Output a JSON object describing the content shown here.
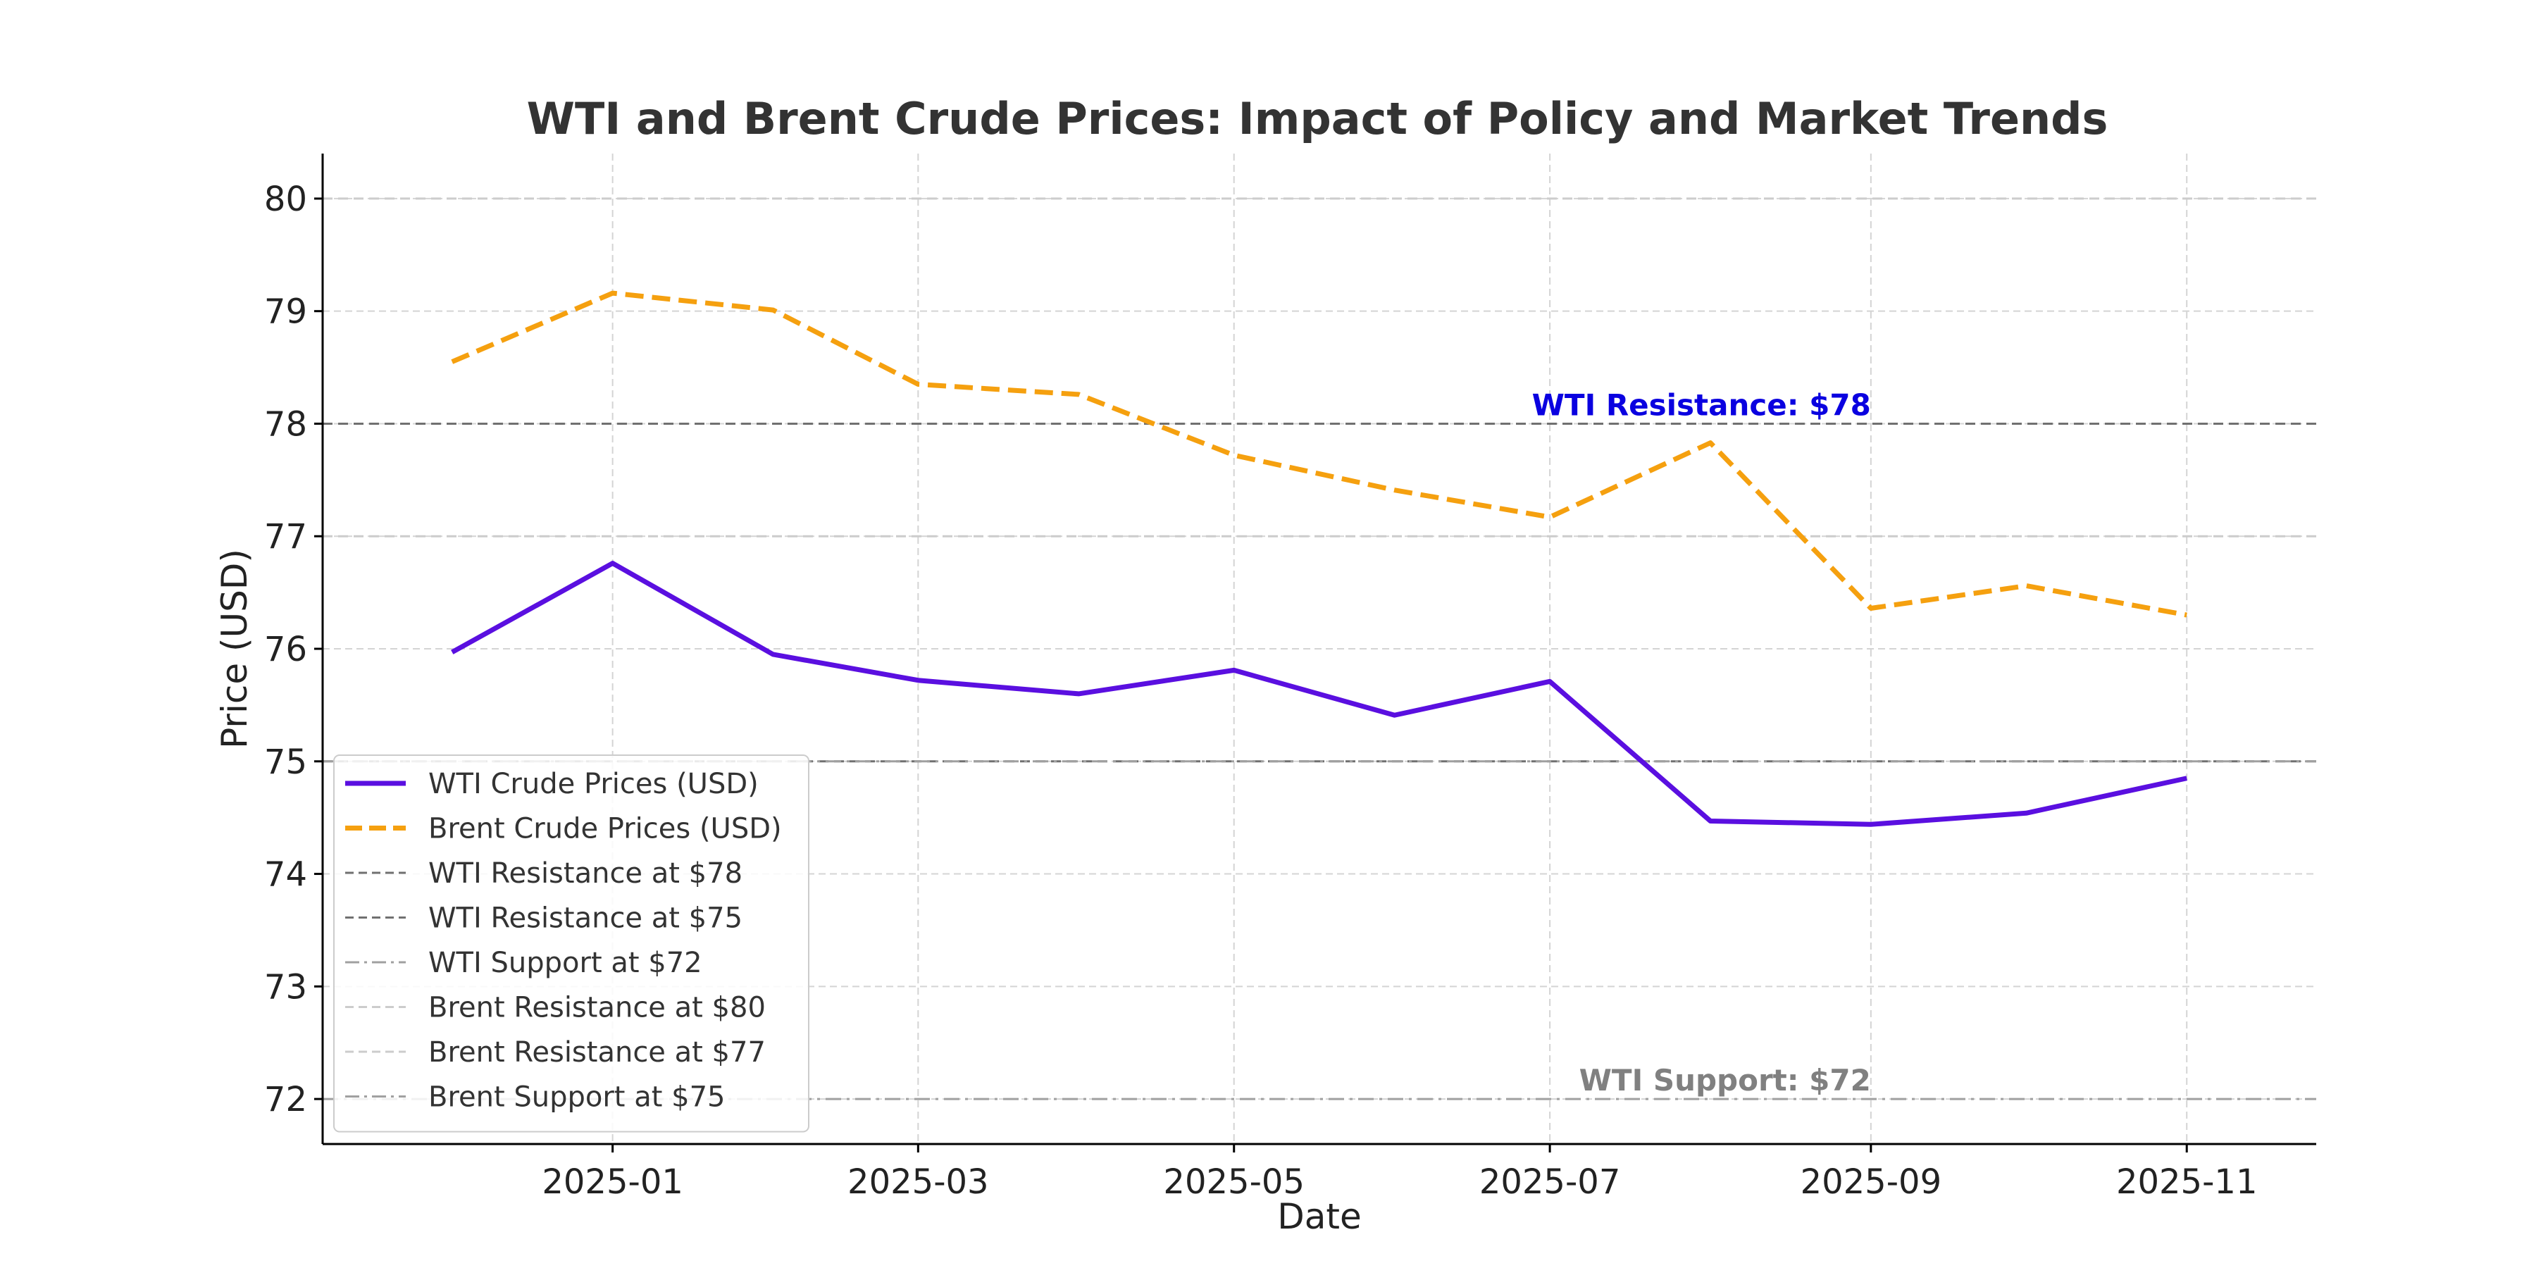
{
  "chart_data": {
    "type": "line",
    "title": "WTI and Brent Crude Prices: Impact of Policy and Market Trends",
    "xlabel": "Date",
    "ylabel": "Price (USD)",
    "x": [
      "2024-12",
      "2025-01",
      "2025-02",
      "2025-03",
      "2025-04",
      "2025-05",
      "2025-06",
      "2025-07",
      "2025-08",
      "2025-09",
      "2025-10",
      "2025-11"
    ],
    "xticks": [
      "2025-01",
      "2025-03",
      "2025-05",
      "2025-07",
      "2025-09",
      "2025-11"
    ],
    "yticks": [
      "72",
      "73",
      "74",
      "75",
      "76",
      "77",
      "78",
      "79",
      "80"
    ],
    "ylim": [
      71.6,
      80.4
    ],
    "xlim": [
      "2024-11-06",
      "2025-11-26"
    ],
    "grid": true,
    "legend_position": "lower-left",
    "series": [
      {
        "name": "WTI Crude Prices (USD)",
        "color": "#5a0fe0",
        "style": "solid",
        "values": [
          75.97,
          76.76,
          75.95,
          75.72,
          75.6,
          75.81,
          75.41,
          75.71,
          74.47,
          74.44,
          74.54,
          74.85
        ]
      },
      {
        "name": "Brent Crude Prices (USD)",
        "color": "#f5a00f",
        "style": "dashed",
        "values": [
          78.55,
          79.16,
          79.01,
          78.35,
          78.26,
          77.72,
          77.41,
          77.17,
          77.83,
          76.36,
          76.56,
          76.3
        ]
      }
    ],
    "reference_lines": [
      {
        "name": "WTI Resistance at $78",
        "y": 78,
        "color": "#707070",
        "style": "dashed"
      },
      {
        "name": "WTI Resistance at $75",
        "y": 75,
        "color": "#707070",
        "style": "dashed"
      },
      {
        "name": "WTI Support at $72",
        "y": 72,
        "color": "#a0a0a0",
        "style": "dashdot"
      },
      {
        "name": "Brent Resistance at $80",
        "y": 80,
        "color": "#cccccc",
        "style": "dashed"
      },
      {
        "name": "Brent Resistance at $77",
        "y": 77,
        "color": "#cccccc",
        "style": "dashed"
      },
      {
        "name": "Brent Support at $75",
        "y": 75,
        "color": "#a0a0a0",
        "style": "dashdot"
      }
    ],
    "annotations": [
      {
        "text": "WTI Resistance: $78",
        "x": "2025-08",
        "y": 78,
        "color": "#0a00e0"
      },
      {
        "text": "WTI Support: $72",
        "x": "2025-08",
        "y": 72,
        "color": "#808080"
      }
    ]
  }
}
